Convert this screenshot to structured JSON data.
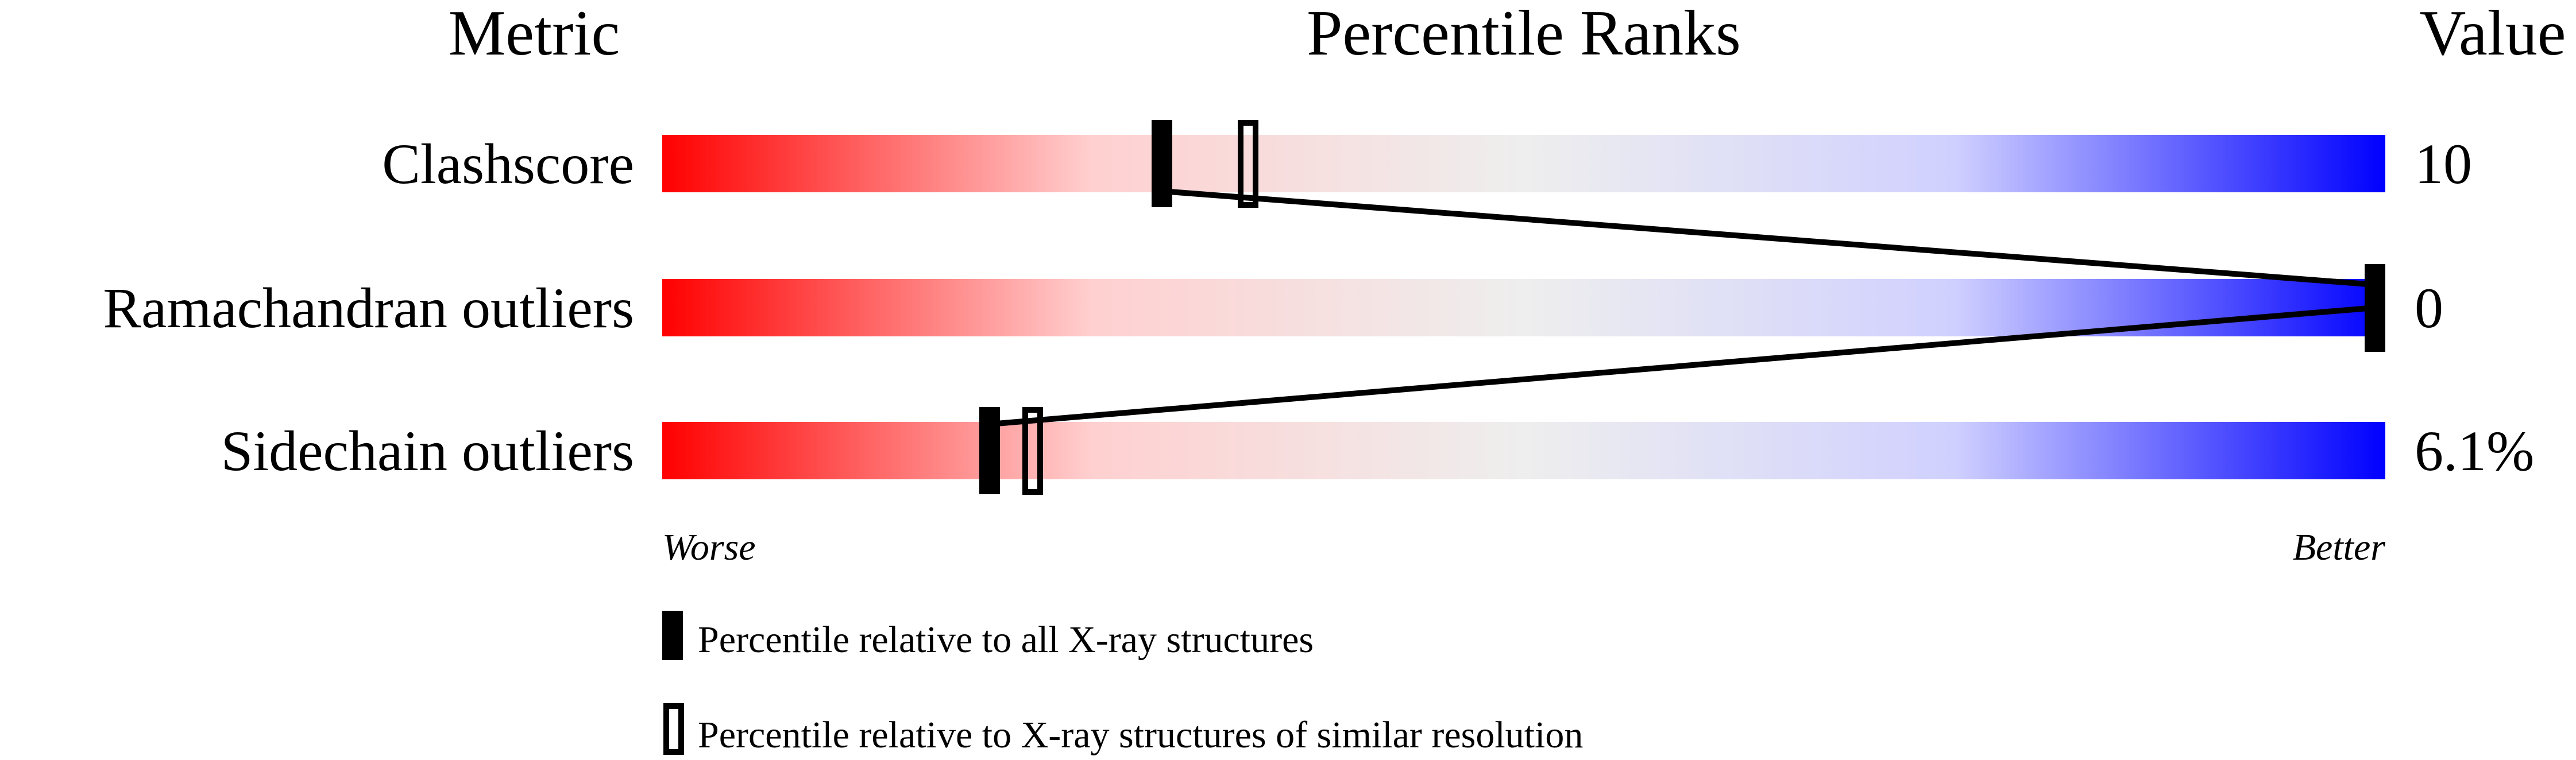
{
  "chart_data": {
    "type": "percentile-bar",
    "headers": {
      "metric": "Metric",
      "ranks": "Percentile Ranks",
      "value": "Value"
    },
    "axis": {
      "left_label": "Worse",
      "right_label": "Better",
      "range": [
        0,
        100
      ]
    },
    "gradient_colors": [
      "#ff0000",
      "#ffd0d0",
      "#eeeeee",
      "#d0d0ff",
      "#0000ff"
    ],
    "rows": [
      {
        "metric": "Clashscore",
        "value": "10",
        "percentile_all": 29,
        "percentile_similar": 34
      },
      {
        "metric": "Ramachandran outliers",
        "value": "0",
        "percentile_all": 100,
        "percentile_similar": 100
      },
      {
        "metric": "Sidechain outliers",
        "value": "6.1%",
        "percentile_all": 19,
        "percentile_similar": 21.5
      }
    ],
    "legend": [
      {
        "marker": "filled",
        "label": "Percentile relative to all X-ray structures"
      },
      {
        "marker": "open",
        "label": "Percentile relative to X-ray structures of similar resolution"
      }
    ]
  }
}
